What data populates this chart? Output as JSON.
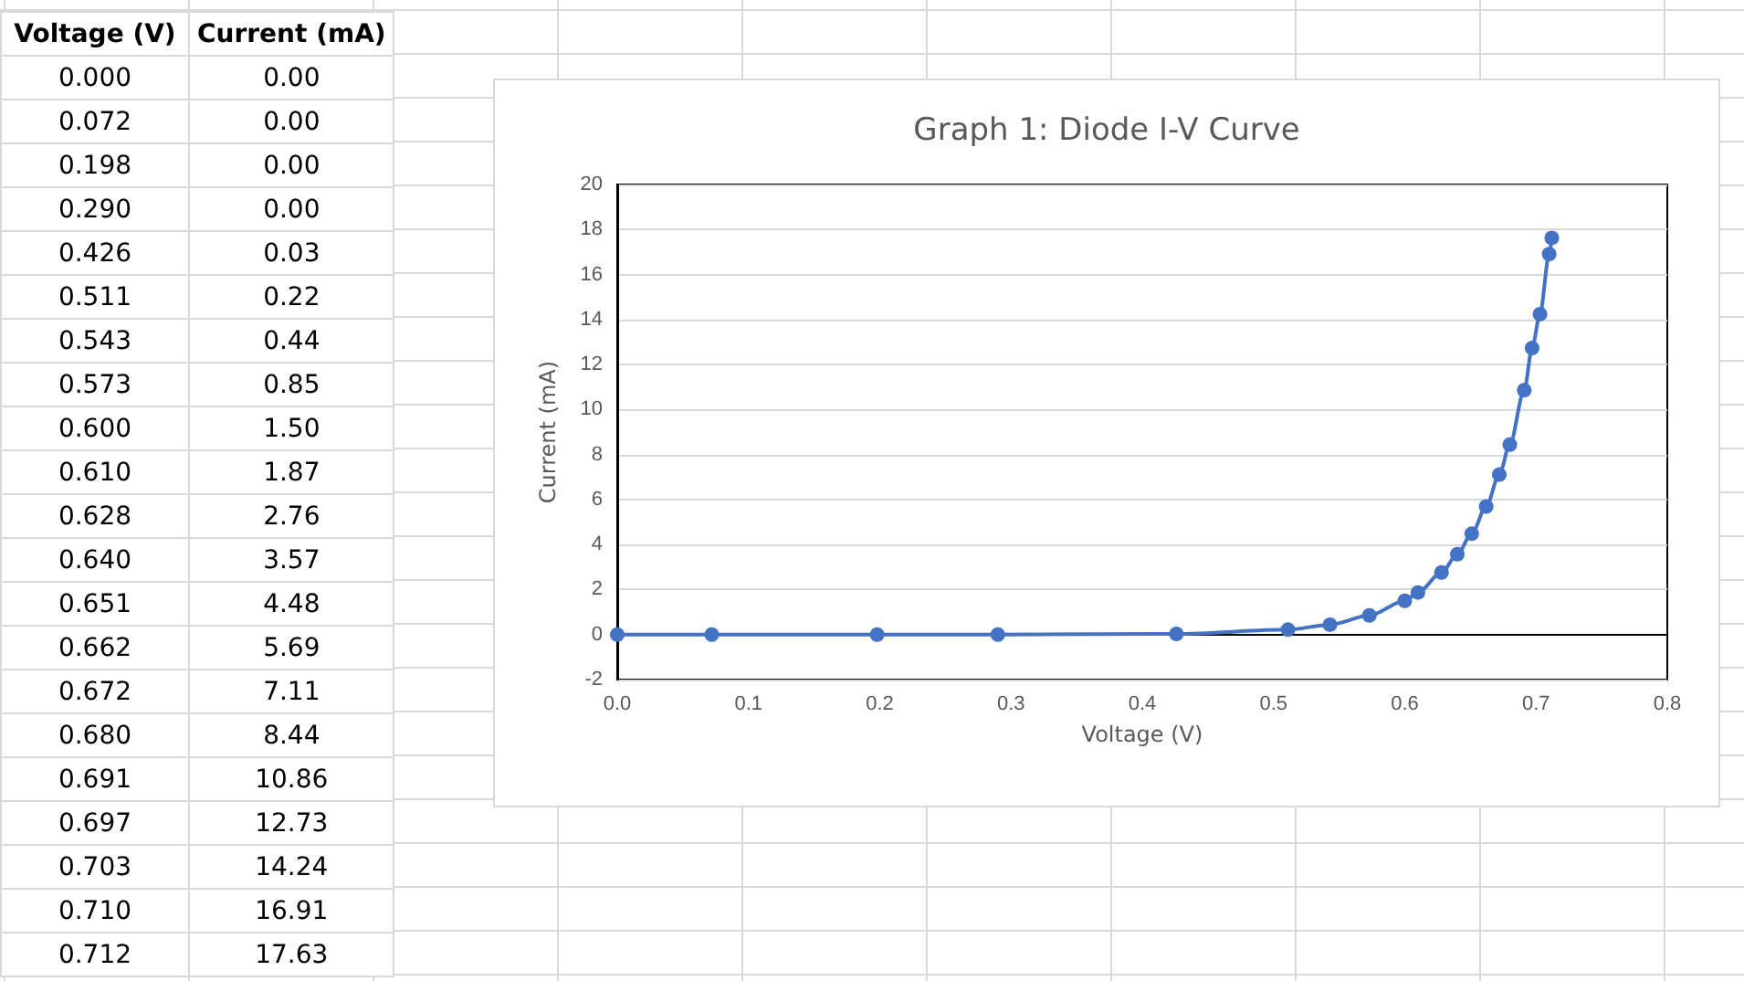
{
  "chart_data": {
    "type": "line",
    "title": "Graph 1: Diode I-V Curve",
    "xlabel": "Voltage (V)",
    "ylabel": "Current (mA)",
    "annotations": [
      "Voltage (V)",
      "Current (mA)",
      "0.000",
      "0.00",
      "0.072",
      "0.00",
      "0.198",
      "0.00",
      "0.290",
      "0.00",
      "0.426",
      "0.03",
      "0.511",
      "0.22",
      "0.543",
      "0.44",
      "0.573",
      "0.85",
      "0.600",
      "1.50",
      "0.610",
      "1.87",
      "0.628",
      "2.76",
      "0.640",
      "3.57",
      "0.651",
      "4.48",
      "0.662",
      "5.69",
      "0.672",
      "7.11",
      "0.680",
      "8.44",
      "0.691",
      "10.86",
      "0.697",
      "12.73",
      "0.703",
      "14.24",
      "0.710",
      "16.91",
      "0.712",
      "17.63"
    ],
    "x": [
      0.0,
      0.072,
      0.198,
      0.29,
      0.426,
      0.511,
      0.543,
      0.573,
      0.6,
      0.61,
      0.628,
      0.64,
      0.651,
      0.662,
      0.672,
      0.68,
      0.691,
      0.697,
      0.703,
      0.71,
      0.712
    ],
    "series": [
      {
        "color": "#4472c4",
        "values": [
          0.0,
          0.0,
          0.0,
          0.0,
          0.03,
          0.22,
          0.44,
          0.85,
          1.5,
          1.87,
          2.76,
          3.57,
          4.48,
          5.69,
          7.11,
          8.44,
          10.86,
          12.73,
          14.24,
          16.91,
          17.63
        ]
      }
    ],
    "xlim": [
      0,
      0.8
    ],
    "xticks": [
      {
        "value": 0,
        "label": "0.0"
      },
      0.1,
      0.2,
      0.3,
      0.4,
      0.5,
      0.6,
      0.7,
      0.8
    ],
    "ylim": [
      -2,
      20
    ],
    "yticks": [
      -2,
      0,
      2,
      4,
      6,
      8,
      10,
      12,
      14,
      16,
      18,
      20
    ],
    "grid": "y",
    "marker": "circle",
    "line_style": "solid"
  }
}
